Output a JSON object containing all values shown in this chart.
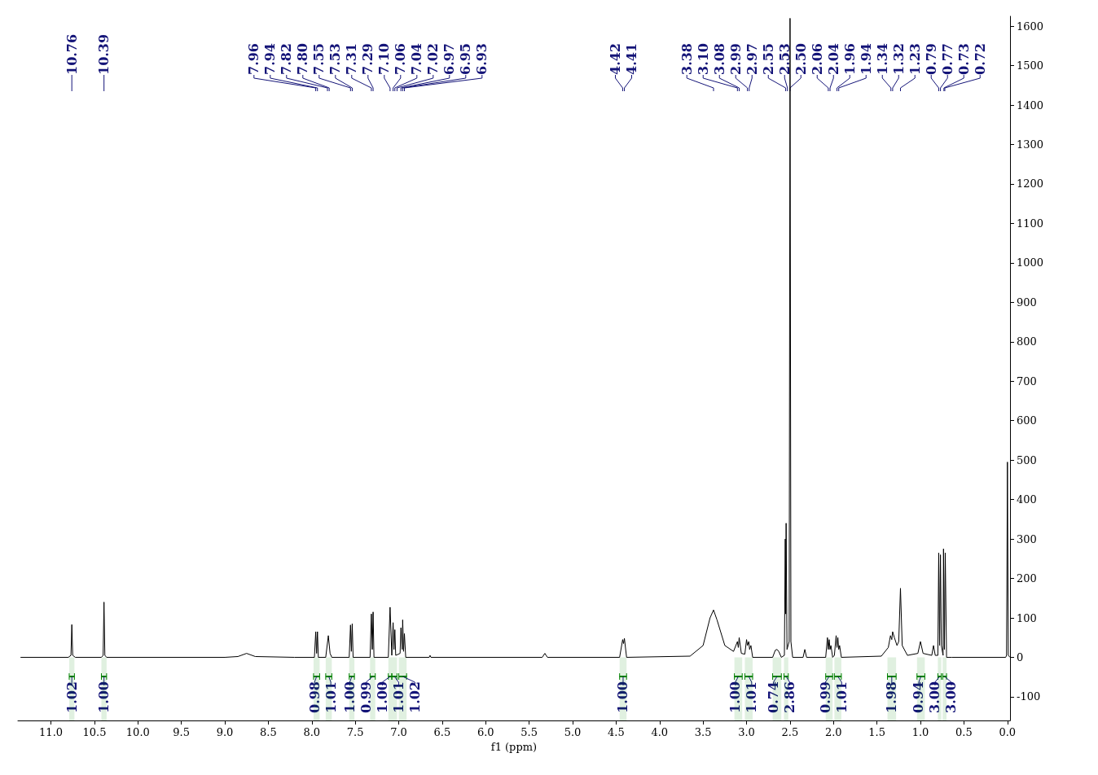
{
  "chart_data": {
    "type": "line",
    "xlabel": "f1 (ppm)",
    "color": "#000000",
    "xlim": [
      11.38,
      -0.03
    ],
    "ylim": [
      -160,
      1625
    ],
    "xticks": [
      {
        "value": 11,
        "label": "11.0"
      },
      {
        "value": 10.5,
        "label": "10.5"
      },
      {
        "value": 10,
        "label": "10.0"
      },
      {
        "value": 9.5,
        "label": "9.5"
      },
      {
        "value": 9,
        "label": "9.0"
      },
      {
        "value": 8.5,
        "label": "8.5"
      },
      {
        "value": 8,
        "label": "8.0"
      },
      {
        "value": 7.5,
        "label": "7.5"
      },
      {
        "value": 7,
        "label": "7.0"
      },
      {
        "value": 6.5,
        "label": "6.5"
      },
      {
        "value": 6,
        "label": "6.0"
      },
      {
        "value": 5.5,
        "label": "5.5"
      },
      {
        "value": 5,
        "label": "5.0"
      },
      {
        "value": 4.5,
        "label": "4.5"
      },
      {
        "value": 4,
        "label": "4.0"
      },
      {
        "value": 3.5,
        "label": "3.5"
      },
      {
        "value": 3,
        "label": "3.0"
      },
      {
        "value": 2.5,
        "label": "2.5"
      },
      {
        "value": 2,
        "label": "2.0"
      },
      {
        "value": 1.5,
        "label": "1.5"
      },
      {
        "value": 1,
        "label": "1.0"
      },
      {
        "value": 0.5,
        "label": "0.5"
      },
      {
        "value": 0,
        "label": "0.0"
      }
    ],
    "yticks": [
      -100,
      0,
      100,
      200,
      300,
      400,
      500,
      600,
      700,
      800,
      900,
      1000,
      1100,
      1200,
      1300,
      1400,
      1500,
      1600
    ],
    "x": [
      11.35,
      10.8,
      10.77,
      10.76,
      10.75,
      10.72,
      10.42,
      10.4,
      10.39,
      10.38,
      10.36,
      9.0,
      8.85,
      8.75,
      8.65,
      8.2,
      7.97,
      7.955,
      7.945,
      7.935,
      7.925,
      7.84,
      7.81,
      7.79,
      7.77,
      7.57,
      7.555,
      7.545,
      7.535,
      7.525,
      7.33,
      7.315,
      7.305,
      7.295,
      7.285,
      7.12,
      7.1,
      7.08,
      7.065,
      7.055,
      7.045,
      7.035,
      6.985,
      6.975,
      6.96,
      6.955,
      6.945,
      6.935,
      6.92,
      6.65,
      6.64,
      6.63,
      5.35,
      5.32,
      5.29,
      4.46,
      4.425,
      4.415,
      4.405,
      4.38,
      3.65,
      3.5,
      3.42,
      3.38,
      3.34,
      3.25,
      3.15,
      3.105,
      3.095,
      3.085,
      3.06,
      3.02,
      3.0,
      2.99,
      2.975,
      2.965,
      2.95,
      2.93,
      2.7,
      2.67,
      2.65,
      2.63,
      2.6,
      2.565,
      2.555,
      2.55,
      2.545,
      2.535,
      2.51,
      2.5,
      2.49,
      2.47,
      2.35,
      2.33,
      2.31,
      2.09,
      2.07,
      2.06,
      2.05,
      2.04,
      2.03,
      2.01,
      1.99,
      1.97,
      1.96,
      1.95,
      1.94,
      1.93,
      1.91,
      1.45,
      1.37,
      1.345,
      1.33,
      1.32,
      1.3,
      1.27,
      1.25,
      1.23,
      1.21,
      1.15,
      1.03,
      1.0,
      0.97,
      0.87,
      0.85,
      0.83,
      0.8,
      0.79,
      0.78,
      0.77,
      0.76,
      0.74,
      0.735,
      0.725,
      0.715,
      0.7,
      0.64,
      0.02,
      0.01,
      0.0,
      -0.01,
      -0.03
    ],
    "values": [
      0,
      0,
      5,
      83,
      5,
      0,
      0,
      5,
      140,
      5,
      0,
      0,
      2,
      10,
      2,
      0,
      0,
      65,
      10,
      65,
      0,
      0,
      55,
      10,
      0,
      0,
      82,
      15,
      85,
      0,
      0,
      110,
      20,
      115,
      0,
      0,
      127,
      5,
      88,
      20,
      70,
      5,
      10,
      75,
      20,
      95,
      15,
      60,
      0,
      0,
      5,
      0,
      0,
      10,
      0,
      0,
      45,
      35,
      48,
      0,
      3,
      30,
      100,
      120,
      95,
      30,
      15,
      40,
      25,
      50,
      10,
      8,
      45,
      30,
      40,
      20,
      30,
      0,
      0,
      18,
      20,
      15,
      0,
      5,
      300,
      110,
      340,
      20,
      40,
      1620,
      40,
      0,
      0,
      20,
      0,
      0,
      50,
      20,
      45,
      20,
      30,
      0,
      5,
      55,
      25,
      50,
      20,
      30,
      0,
      3,
      25,
      55,
      45,
      65,
      50,
      30,
      40,
      175,
      30,
      5,
      10,
      40,
      10,
      5,
      30,
      5,
      5,
      265,
      30,
      260,
      30,
      5,
      275,
      20,
      265,
      0,
      0,
      0,
      5,
      495,
      5,
      0
    ],
    "annotations": [
      {
        "text": "10.76",
        "x": 10.76
      },
      {
        "text": "10.39",
        "x": 10.39
      },
      {
        "text": "7.96",
        "x": 7.955
      },
      {
        "text": "7.94",
        "x": 7.935
      },
      {
        "text": "7.82",
        "x": 7.82
      },
      {
        "text": "7.80",
        "x": 7.8
      },
      {
        "text": "7.55",
        "x": 7.555
      },
      {
        "text": "7.53",
        "x": 7.535
      },
      {
        "text": "7.31",
        "x": 7.315
      },
      {
        "text": "7.29",
        "x": 7.295
      },
      {
        "text": "7.10",
        "x": 7.1
      },
      {
        "text": "7.06",
        "x": 7.065
      },
      {
        "text": "7.04",
        "x": 7.045
      },
      {
        "text": "7.02",
        "x": 7.02
      },
      {
        "text": "6.97",
        "x": 6.975
      },
      {
        "text": "6.95",
        "x": 6.955
      },
      {
        "text": "6.93",
        "x": 6.935
      },
      {
        "text": "4.42",
        "x": 4.425
      },
      {
        "text": "4.41",
        "x": 4.405
      },
      {
        "text": "3.38",
        "x": 3.38
      },
      {
        "text": "3.10",
        "x": 3.105
      },
      {
        "text": "3.08",
        "x": 3.085
      },
      {
        "text": "2.99",
        "x": 2.99
      },
      {
        "text": "2.97",
        "x": 2.97
      },
      {
        "text": "2.55",
        "x": 2.55
      },
      {
        "text": "2.53",
        "x": 2.53
      },
      {
        "text": "2.50",
        "x": 2.5
      },
      {
        "text": "2.06",
        "x": 2.06
      },
      {
        "text": "2.04",
        "x": 2.04
      },
      {
        "text": "1.96",
        "x": 1.96
      },
      {
        "text": "1.94",
        "x": 1.94
      },
      {
        "text": "1.34",
        "x": 1.34
      },
      {
        "text": "1.32",
        "x": 1.32
      },
      {
        "text": "1.23",
        "x": 1.23
      },
      {
        "text": "0.79",
        "x": 0.79
      },
      {
        "text": "0.77",
        "x": 0.77
      },
      {
        "text": "0.73",
        "x": 0.73
      },
      {
        "text": "0.72",
        "x": 0.72
      }
    ],
    "bands": [
      {
        "axis": "x",
        "from": 10.79,
        "to": 10.73,
        "label": "1.02",
        "color": "#008000"
      },
      {
        "axis": "x",
        "from": 10.42,
        "to": 10.36,
        "label": "1.00",
        "color": "#008000"
      },
      {
        "axis": "x",
        "from": 7.98,
        "to": 7.91,
        "label": "0.98",
        "color": "#008000"
      },
      {
        "axis": "x",
        "from": 7.84,
        "to": 7.77,
        "label": "1.01",
        "color": "#008000"
      },
      {
        "axis": "x",
        "from": 7.57,
        "to": 7.51,
        "label": "1.00",
        "color": "#008000"
      },
      {
        "axis": "x",
        "from": 7.33,
        "to": 7.27,
        "label": "0.99",
        "color": "#008000"
      },
      {
        "axis": "x",
        "from": 7.12,
        "to": 7.08,
        "label": "1.00",
        "color": "#008000"
      },
      {
        "axis": "x",
        "from": 7.08,
        "to": 7.02,
        "label": "1.01",
        "color": "#008000"
      },
      {
        "axis": "x",
        "from": 7.0,
        "to": 6.91,
        "label": "1.02",
        "color": "#008000"
      },
      {
        "axis": "x",
        "from": 4.46,
        "to": 4.38,
        "label": "1.00",
        "color": "#008000"
      },
      {
        "axis": "x",
        "from": 3.14,
        "to": 3.05,
        "label": "1.00",
        "color": "#008000"
      },
      {
        "axis": "x",
        "from": 3.02,
        "to": 2.93,
        "label": "1.01",
        "color": "#008000"
      },
      {
        "axis": "x",
        "from": 2.7,
        "to": 2.6,
        "label": "0.74",
        "color": "#008000"
      },
      {
        "axis": "x",
        "from": 2.57,
        "to": 2.52,
        "label": "2.86",
        "color": "#008000"
      },
      {
        "axis": "x",
        "from": 2.09,
        "to": 2.01,
        "label": "0.99",
        "color": "#008000"
      },
      {
        "axis": "x",
        "from": 1.99,
        "to": 1.91,
        "label": "1.01",
        "color": "#008000"
      },
      {
        "axis": "x",
        "from": 1.38,
        "to": 1.28,
        "label": "1.98",
        "color": "#008000"
      },
      {
        "axis": "x",
        "from": 1.04,
        "to": 0.95,
        "label": "0.94",
        "color": "#008000"
      },
      {
        "axis": "x",
        "from": 0.8,
        "to": 0.76,
        "label": "3.00",
        "color": "#008000"
      },
      {
        "axis": "x",
        "from": 0.745,
        "to": 0.7,
        "label": "3.00",
        "color": "#008000"
      }
    ]
  }
}
